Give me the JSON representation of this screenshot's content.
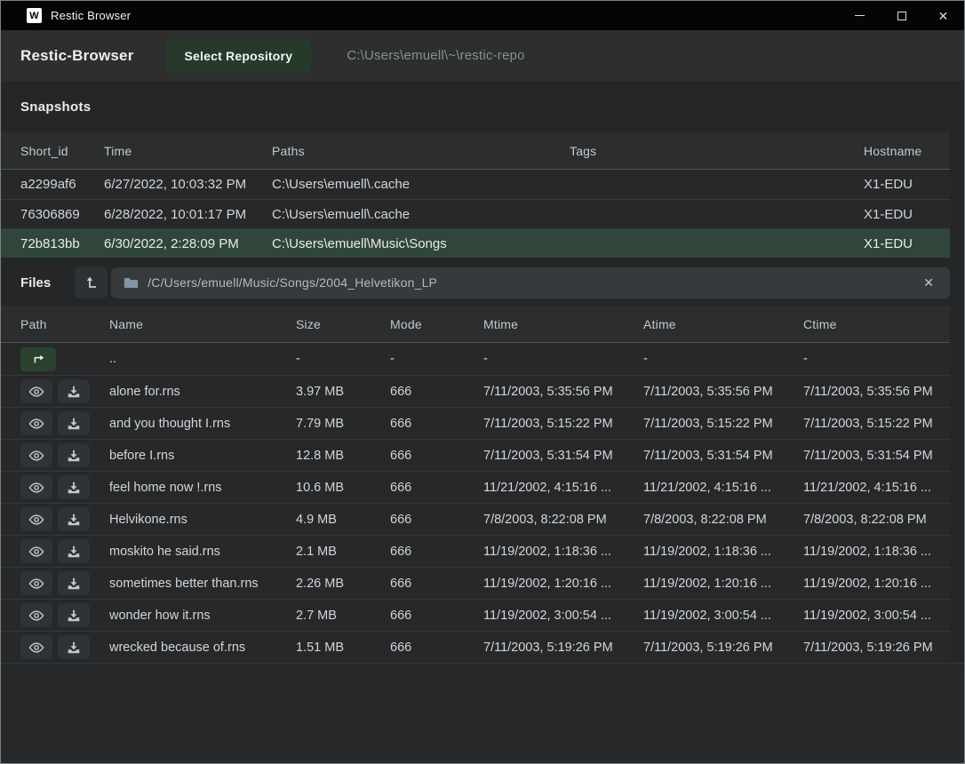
{
  "window": {
    "title": "Restic Browser",
    "icon_letter": "W",
    "controls": {
      "minimize": "minimize",
      "maximize": "maximize",
      "close": "✕"
    }
  },
  "header": {
    "app_title": "Restic-Browser",
    "select_repository_label": "Select Repository",
    "repository_path": "C:\\Users\\emuell\\~\\restic-repo"
  },
  "snapshots": {
    "heading": "Snapshots",
    "columns": [
      "Short_id",
      "Time",
      "Paths",
      "Tags",
      "Hostname"
    ],
    "rows": [
      {
        "short_id": "a2299af6",
        "time": "6/27/2022, 10:03:32 PM",
        "paths": "C:\\Users\\emuell\\.cache",
        "tags": "",
        "hostname": "X1-EDU",
        "selected": false
      },
      {
        "short_id": "76306869",
        "time": "6/28/2022, 10:01:17 PM",
        "paths": "C:\\Users\\emuell\\.cache",
        "tags": "",
        "hostname": "X1-EDU",
        "selected": false
      },
      {
        "short_id": "72b813bb",
        "time": "6/30/2022, 2:28:09 PM",
        "paths": "C:\\Users\\emuell\\Music\\Songs",
        "tags": "",
        "hostname": "X1-EDU",
        "selected": true
      }
    ]
  },
  "files": {
    "heading": "Files",
    "path_bar": {
      "path": "/C/Users/emuell/Music/Songs/2004_Helvetikon_LP",
      "clear_glyph": "✕"
    },
    "columns": [
      "Path",
      "Name",
      "Size",
      "Mode",
      "Mtime",
      "Atime",
      "Ctime"
    ],
    "parent_row": {
      "name": "..",
      "size": "-",
      "mode": "-",
      "mtime": "-",
      "atime": "-",
      "ctime": "-"
    },
    "rows": [
      {
        "name": "alone for.rns",
        "size": "3.97 MB",
        "mode": "666",
        "mtime": "7/11/2003, 5:35:56 PM",
        "atime": "7/11/2003, 5:35:56 PM",
        "ctime": "7/11/2003, 5:35:56 PM"
      },
      {
        "name": "and you thought I.rns",
        "size": "7.79 MB",
        "mode": "666",
        "mtime": "7/11/2003, 5:15:22 PM",
        "atime": "7/11/2003, 5:15:22 PM",
        "ctime": "7/11/2003, 5:15:22 PM"
      },
      {
        "name": "before I.rns",
        "size": "12.8 MB",
        "mode": "666",
        "mtime": "7/11/2003, 5:31:54 PM",
        "atime": "7/11/2003, 5:31:54 PM",
        "ctime": "7/11/2003, 5:31:54 PM"
      },
      {
        "name": "feel home now !.rns",
        "size": "10.6 MB",
        "mode": "666",
        "mtime": "11/21/2002, 4:15:16 ...",
        "atime": "11/21/2002, 4:15:16 ...",
        "ctime": "11/21/2002, 4:15:16 ..."
      },
      {
        "name": "Helvikone.rns",
        "size": "4.9 MB",
        "mode": "666",
        "mtime": "7/8/2003, 8:22:08 PM",
        "atime": "7/8/2003, 8:22:08 PM",
        "ctime": "7/8/2003, 8:22:08 PM"
      },
      {
        "name": "moskito he said.rns",
        "size": "2.1 MB",
        "mode": "666",
        "mtime": "11/19/2002, 1:18:36 ...",
        "atime": "11/19/2002, 1:18:36 ...",
        "ctime": "11/19/2002, 1:18:36 ..."
      },
      {
        "name": "sometimes better than.rns",
        "size": "2.26 MB",
        "mode": "666",
        "mtime": "11/19/2002, 1:20:16 ...",
        "atime": "11/19/2002, 1:20:16 ...",
        "ctime": "11/19/2002, 1:20:16 ..."
      },
      {
        "name": "wonder how it.rns",
        "size": "2.7 MB",
        "mode": "666",
        "mtime": "11/19/2002, 3:00:54 ...",
        "atime": "11/19/2002, 3:00:54 ...",
        "ctime": "11/19/2002, 3:00:54 ..."
      },
      {
        "name": "wrecked because of.rns",
        "size": "1.51 MB",
        "mode": "666",
        "mtime": "7/11/2003, 5:19:26 PM",
        "atime": "7/11/2003, 5:19:26 PM",
        "ctime": "7/11/2003, 5:19:26 PM"
      }
    ]
  },
  "colors": {
    "titlebar_bg": "#050505",
    "header_bg": "#2d2f2e",
    "page_bg": "#242628",
    "row_bg": "#26282a",
    "selected_row_bg": "#30463a",
    "accent_green_button": "#253a2b",
    "nav_green_button": "#2a432f",
    "icon_button_bg": "#303336",
    "pathbar_bg": "#373a3c"
  },
  "icons": {
    "app": "wails-w-icon",
    "preview": "eye-icon",
    "download": "download-tray-icon",
    "parent_dir": "up-right-arrow-icon",
    "root": "up-level-icon",
    "folder": "folder-icon",
    "clear": "x-icon"
  }
}
